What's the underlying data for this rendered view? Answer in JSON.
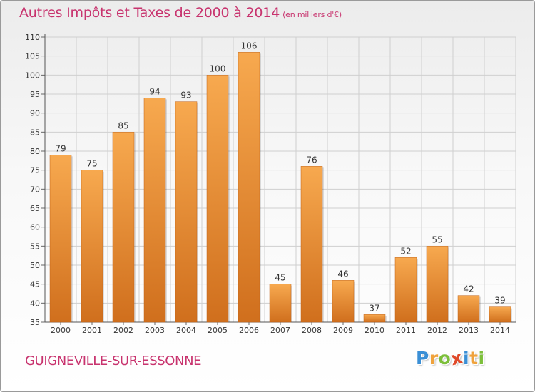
{
  "header": {
    "title": "Autres Impôts et Taxes de 2000 à 2014",
    "unit": "(en milliers d'€)"
  },
  "footer": {
    "commune": "GUIGNEVILLE-SUR-ESSONNE",
    "logo_letters": [
      "P",
      "r",
      "o",
      "x",
      "i",
      "t",
      "i"
    ],
    "logo_colors": [
      "#3a8fd6",
      "#f0a23c",
      "#7cbf3a",
      "#e04a2a",
      "#3a8fd6",
      "#f0a23c",
      "#7cbf3a"
    ]
  },
  "colors": {
    "bar_light": "#f7a94f",
    "bar_dark": "#d06f1d",
    "title": "#c8336e",
    "grid": "#cfcfcf"
  },
  "chart_data": {
    "type": "bar",
    "title": "Autres Impôts et Taxes de 2000 à 2014",
    "subtitle": "(en milliers d'€)",
    "categories": [
      "2000",
      "2001",
      "2002",
      "2003",
      "2004",
      "2005",
      "2006",
      "2007",
      "2008",
      "2009",
      "2010",
      "2011",
      "2012",
      "2013",
      "2014"
    ],
    "values": [
      79,
      75,
      85,
      94,
      93,
      100,
      106,
      45,
      76,
      46,
      37,
      52,
      55,
      42,
      39
    ],
    "ylim": [
      35,
      110
    ],
    "yticks": [
      35,
      40,
      45,
      50,
      55,
      60,
      65,
      70,
      75,
      80,
      85,
      90,
      95,
      100,
      105,
      110
    ],
    "xlabel": "",
    "ylabel": "",
    "grid": true,
    "data_labels": true
  }
}
